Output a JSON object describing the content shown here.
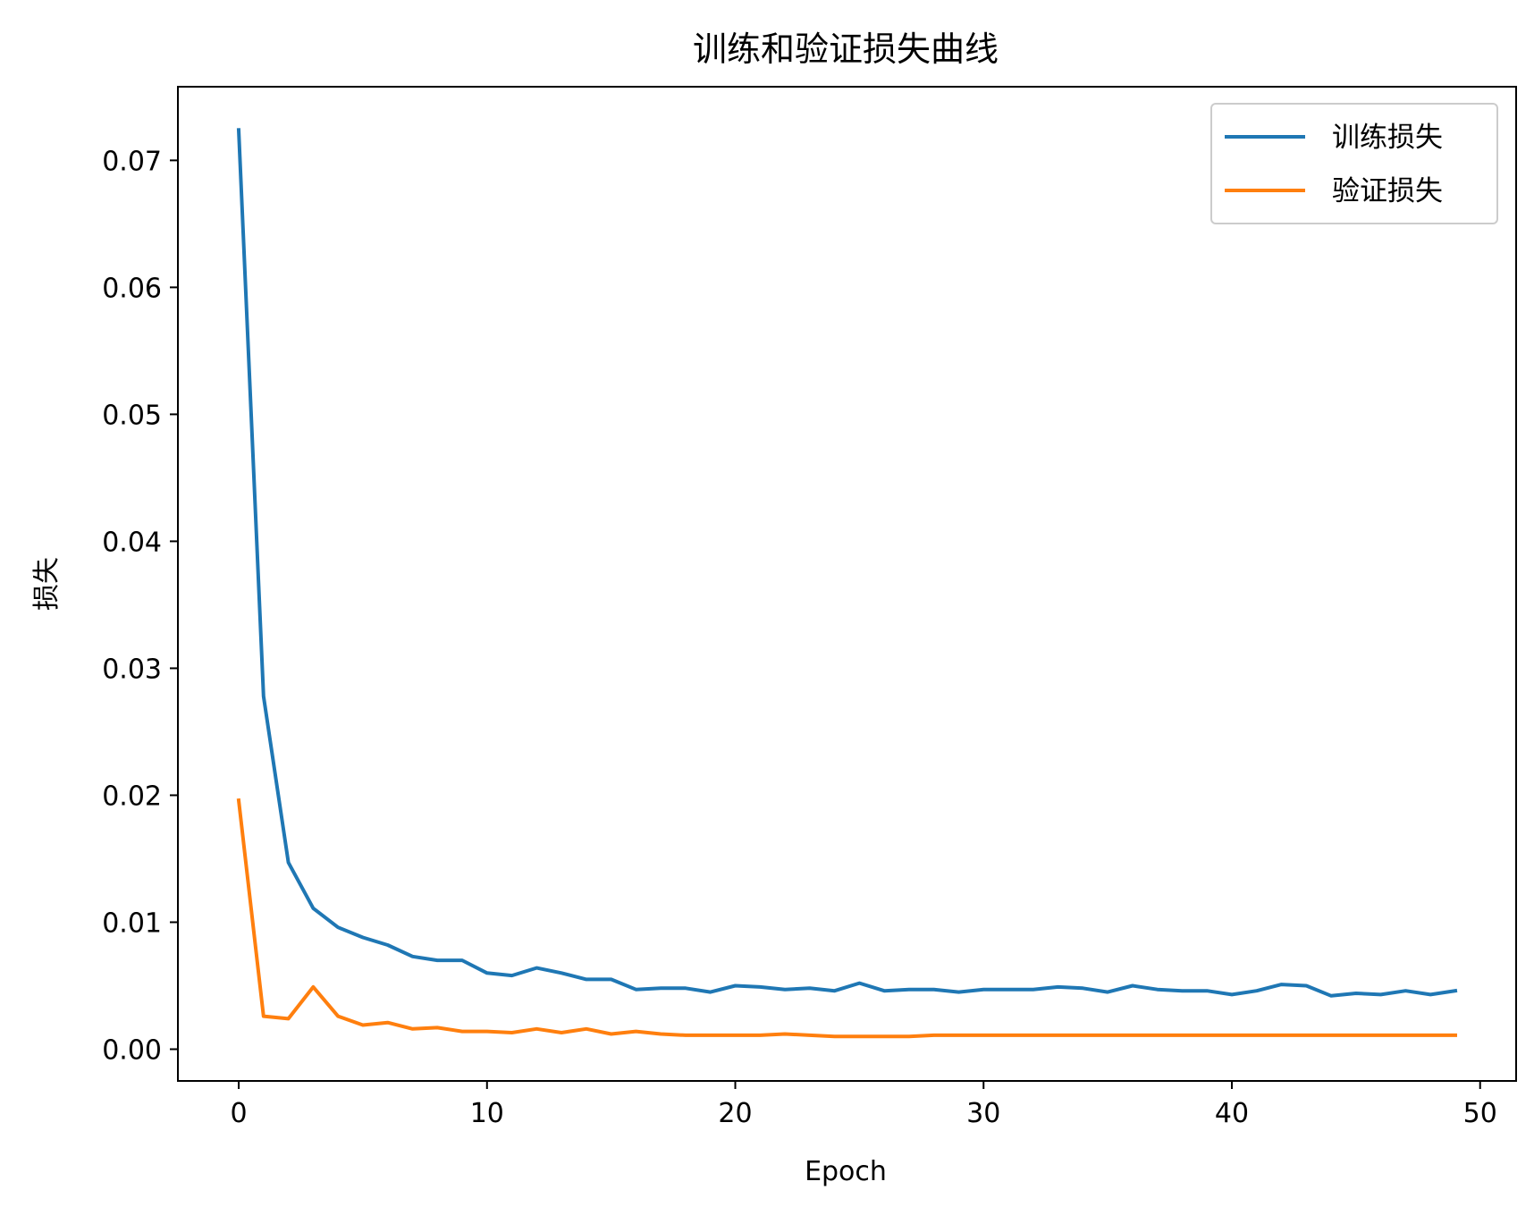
{
  "chart_data": {
    "type": "line",
    "title": "训练和验证损失曲线",
    "xlabel": "Epoch",
    "ylabel": "损失",
    "xlim": [
      -2.45,
      51.45
    ],
    "ylim": [
      -0.0025,
      0.0758
    ],
    "xticks": [
      0,
      10,
      20,
      30,
      40,
      50
    ],
    "yticks": [
      0.0,
      0.01,
      0.02,
      0.03,
      0.04,
      0.05,
      0.06,
      0.07
    ],
    "ytick_labels": [
      "0.00",
      "0.01",
      "0.02",
      "0.03",
      "0.04",
      "0.05",
      "0.06",
      "0.07"
    ],
    "legend_position": "top-right",
    "grid": false,
    "x": [
      0,
      1,
      2,
      3,
      4,
      5,
      6,
      7,
      8,
      9,
      10,
      11,
      12,
      13,
      14,
      15,
      16,
      17,
      18,
      19,
      20,
      21,
      22,
      23,
      24,
      25,
      26,
      27,
      28,
      29,
      30,
      31,
      32,
      33,
      34,
      35,
      36,
      37,
      38,
      39,
      40,
      41,
      42,
      43,
      44,
      45,
      46,
      47,
      48,
      49
    ],
    "series": [
      {
        "name": "训练损失",
        "color": "#1f77b4",
        "values": [
          0.0724,
          0.0278,
          0.0147,
          0.0111,
          0.0096,
          0.0088,
          0.0082,
          0.0073,
          0.007,
          0.007,
          0.006,
          0.0058,
          0.0064,
          0.006,
          0.0055,
          0.0055,
          0.0047,
          0.0048,
          0.0048,
          0.0045,
          0.005,
          0.0049,
          0.0047,
          0.0048,
          0.0046,
          0.0052,
          0.0046,
          0.0047,
          0.0047,
          0.0045,
          0.0047,
          0.0047,
          0.0047,
          0.0049,
          0.0048,
          0.0045,
          0.005,
          0.0047,
          0.0046,
          0.0046,
          0.0043,
          0.0046,
          0.0051,
          0.005,
          0.0042,
          0.0044,
          0.0043,
          0.0046,
          0.0043,
          0.0046
        ]
      },
      {
        "name": "验证损失",
        "color": "#ff7f0e",
        "values": [
          0.0196,
          0.0026,
          0.0024,
          0.0049,
          0.0026,
          0.0019,
          0.0021,
          0.0016,
          0.0017,
          0.0014,
          0.0014,
          0.0013,
          0.0016,
          0.0013,
          0.0016,
          0.0012,
          0.0014,
          0.0012,
          0.0011,
          0.0011,
          0.0011,
          0.0011,
          0.0012,
          0.0011,
          0.001,
          0.001,
          0.001,
          0.001,
          0.0011,
          0.0011,
          0.0011,
          0.0011,
          0.0011,
          0.0011,
          0.0011,
          0.0011,
          0.0011,
          0.0011,
          0.0011,
          0.0011,
          0.0011,
          0.0011,
          0.0011,
          0.0011,
          0.0011,
          0.0011,
          0.0011,
          0.0011,
          0.0011,
          0.0011
        ]
      }
    ]
  }
}
